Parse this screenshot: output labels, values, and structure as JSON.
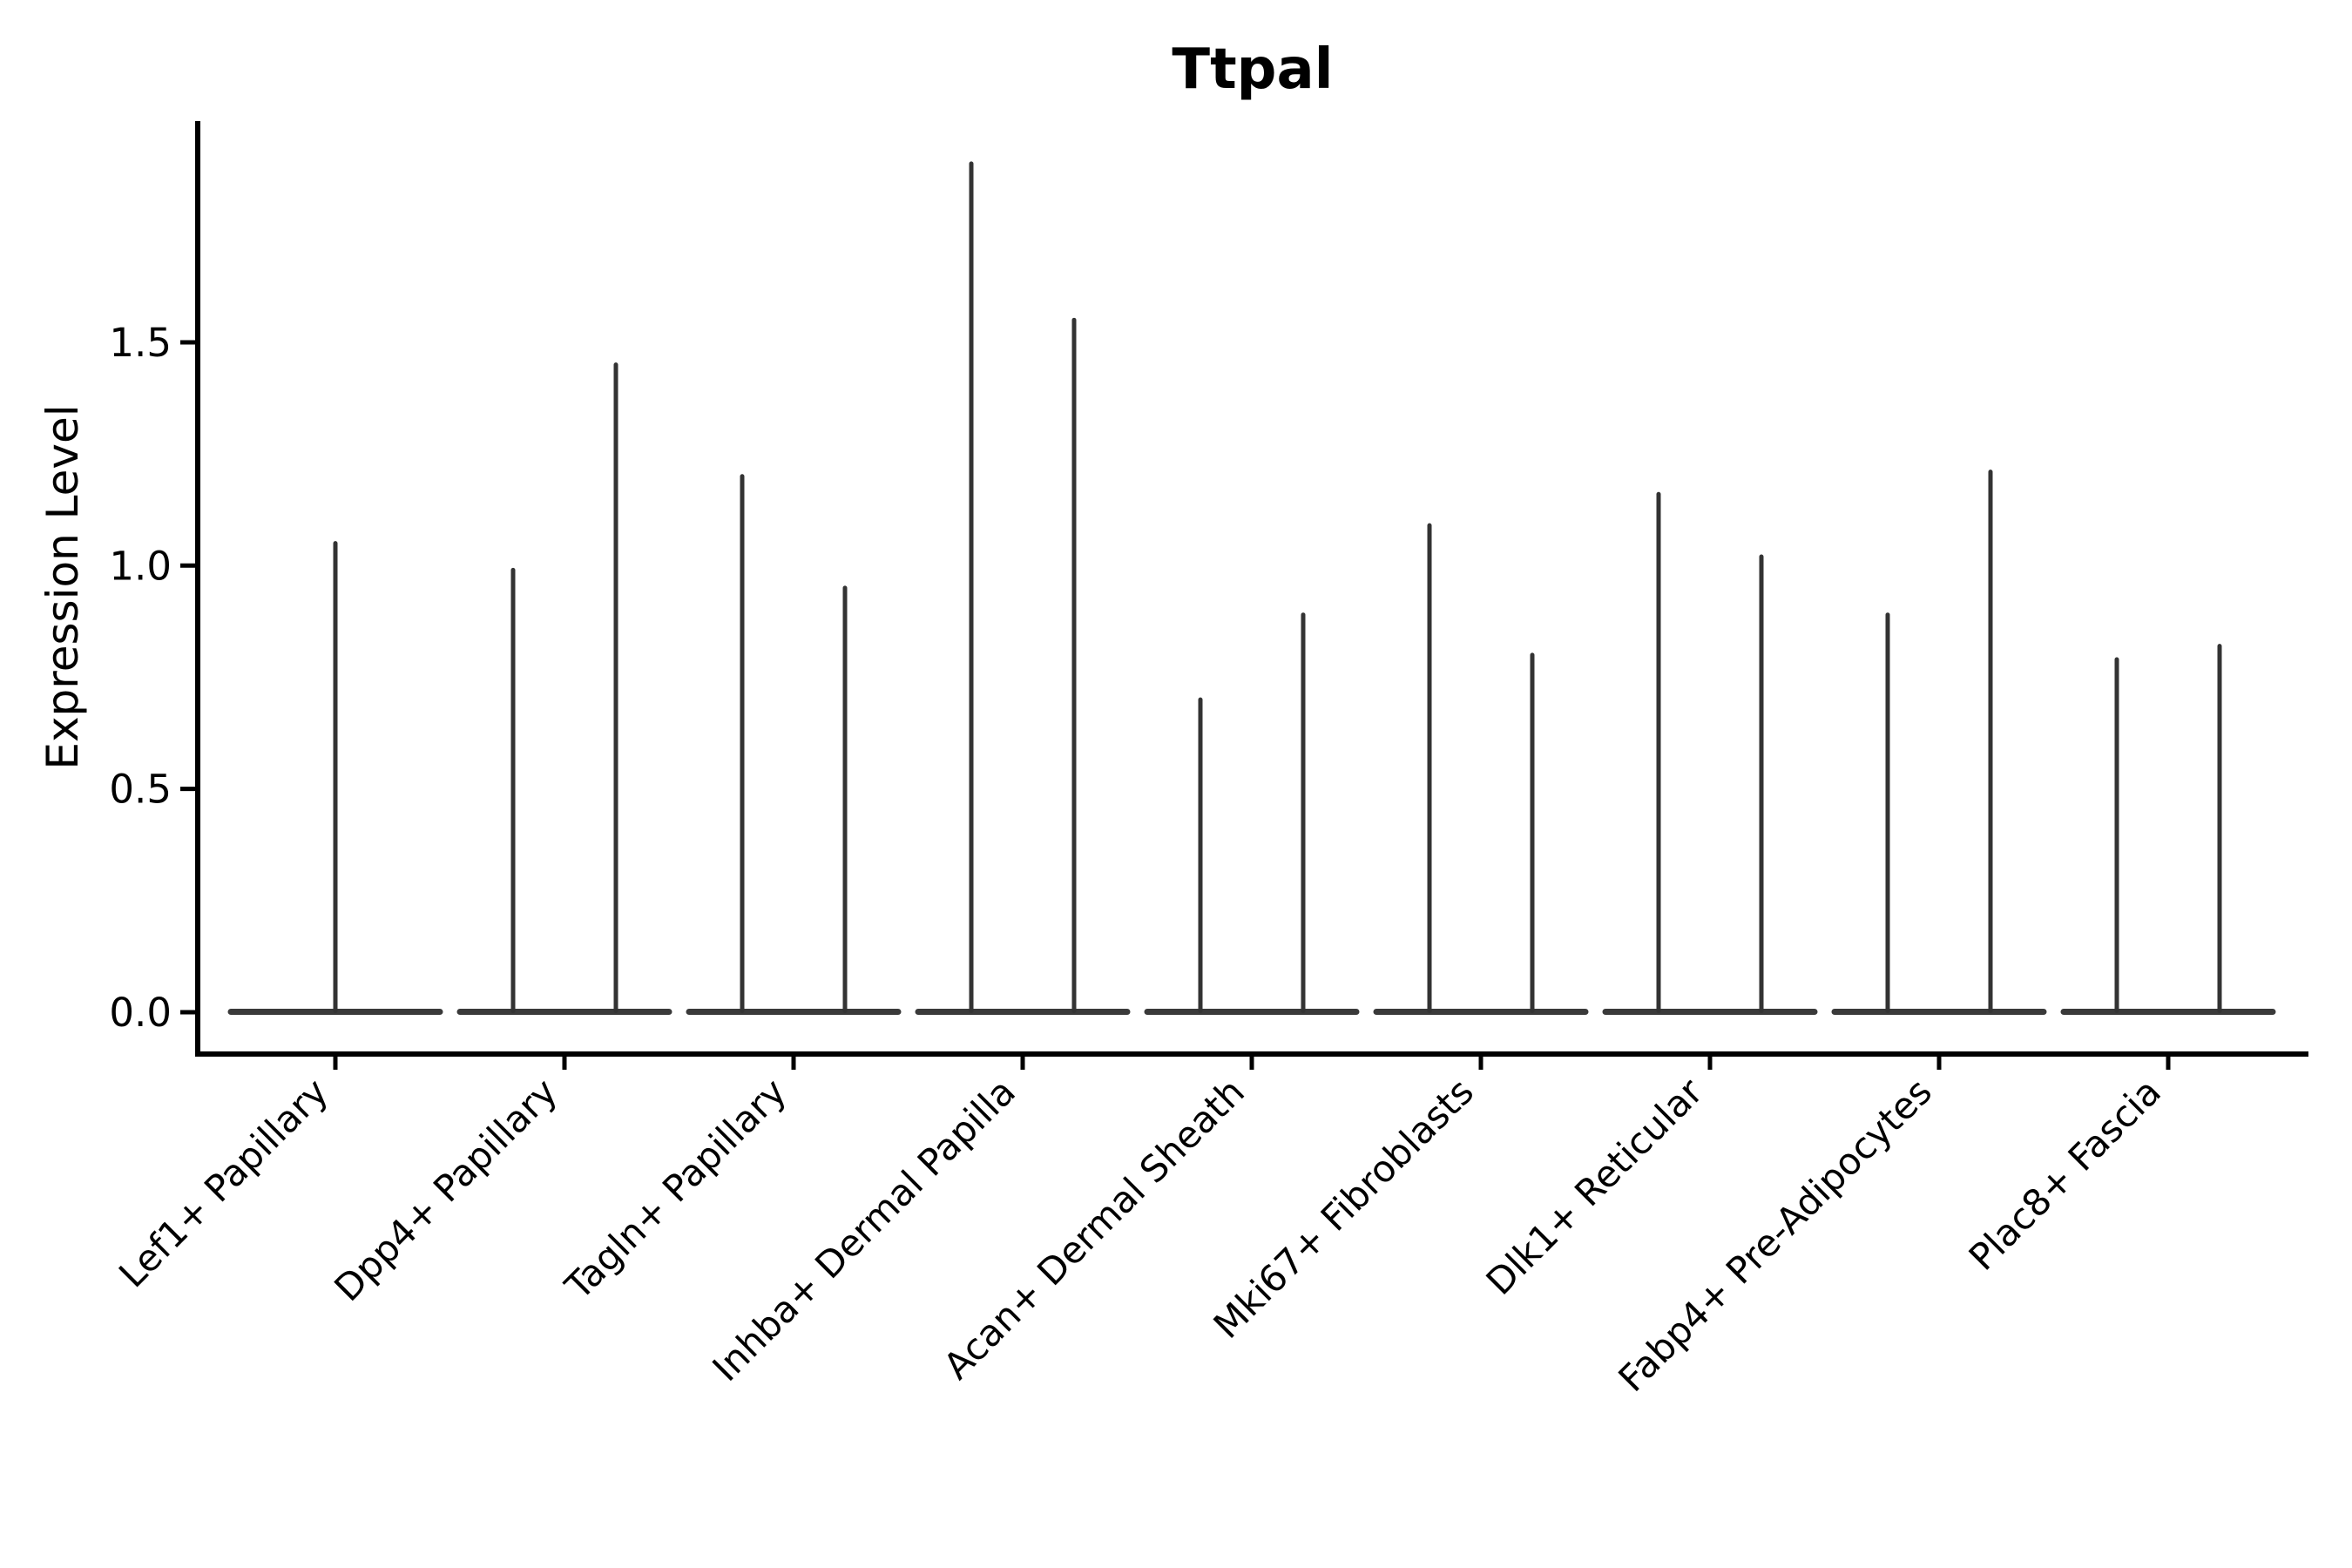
{
  "chart_data": {
    "type": "violin",
    "title": "Ttpal",
    "ylabel": "Expression Level",
    "xlabel": "",
    "categories": [
      "Lef1+ Papillary",
      "Dpp4+ Papillary",
      "Tagln+ Papillary",
      "Inhba+ Dermal Papilla",
      "Acan+ Dermal Sheath",
      "Mki67+ Fibroblasts",
      "Dlk1+ Reticular",
      "Fabp4+ Pre-Adipocytes",
      "Plac8+ Fascia"
    ],
    "series": [
      {
        "category": "Lef1+ Papillary",
        "violins": [
          {
            "position": "center",
            "max_expression": 1.05
          }
        ]
      },
      {
        "category": "Dpp4+ Papillary",
        "violins": [
          {
            "position": "left",
            "max_expression": 0.99
          },
          {
            "position": "right",
            "max_expression": 1.45
          }
        ]
      },
      {
        "category": "Tagln+ Papillary",
        "violins": [
          {
            "position": "left",
            "max_expression": 1.2
          },
          {
            "position": "right",
            "max_expression": 0.95
          }
        ]
      },
      {
        "category": "Inhba+ Dermal Papilla",
        "violins": [
          {
            "position": "left",
            "max_expression": 1.9
          },
          {
            "position": "right",
            "max_expression": 1.55
          }
        ]
      },
      {
        "category": "Acan+ Dermal Sheath",
        "violins": [
          {
            "position": "left",
            "max_expression": 0.7
          },
          {
            "position": "right",
            "max_expression": 0.89
          }
        ]
      },
      {
        "category": "Mki67+ Fibroblasts",
        "violins": [
          {
            "position": "left",
            "max_expression": 1.09
          },
          {
            "position": "right",
            "max_expression": 0.8
          }
        ]
      },
      {
        "category": "Dlk1+ Reticular",
        "violins": [
          {
            "position": "left",
            "max_expression": 1.16
          },
          {
            "position": "right",
            "max_expression": 1.02
          }
        ]
      },
      {
        "category": "Fabp4+ Pre-Adipocytes",
        "violins": [
          {
            "position": "left",
            "max_expression": 0.89
          },
          {
            "position": "right",
            "max_expression": 1.21
          }
        ]
      },
      {
        "category": "Plac8+ Fascia",
        "violins": [
          {
            "position": "left",
            "max_expression": 0.79
          },
          {
            "position": "right",
            "max_expression": 0.82
          }
        ]
      }
    ],
    "y_ticks": [
      0.0,
      0.5,
      1.0,
      1.5
    ],
    "y_tick_labels": [
      "0.0",
      "0.5",
      "1.0",
      "1.5"
    ],
    "ylim": [
      -0.09,
      2.0
    ],
    "grid": false,
    "legend": "none",
    "shape_note": "Sparse single-cell expression violins: wide flat density base at 0 with one thin vertical spike per violin rising to the max expression value."
  },
  "style": {
    "violin_color": "#333333",
    "baseline_color": "#3a3a3a",
    "axis_color": "#000000",
    "background": "#ffffff",
    "title_color": "#000000"
  }
}
